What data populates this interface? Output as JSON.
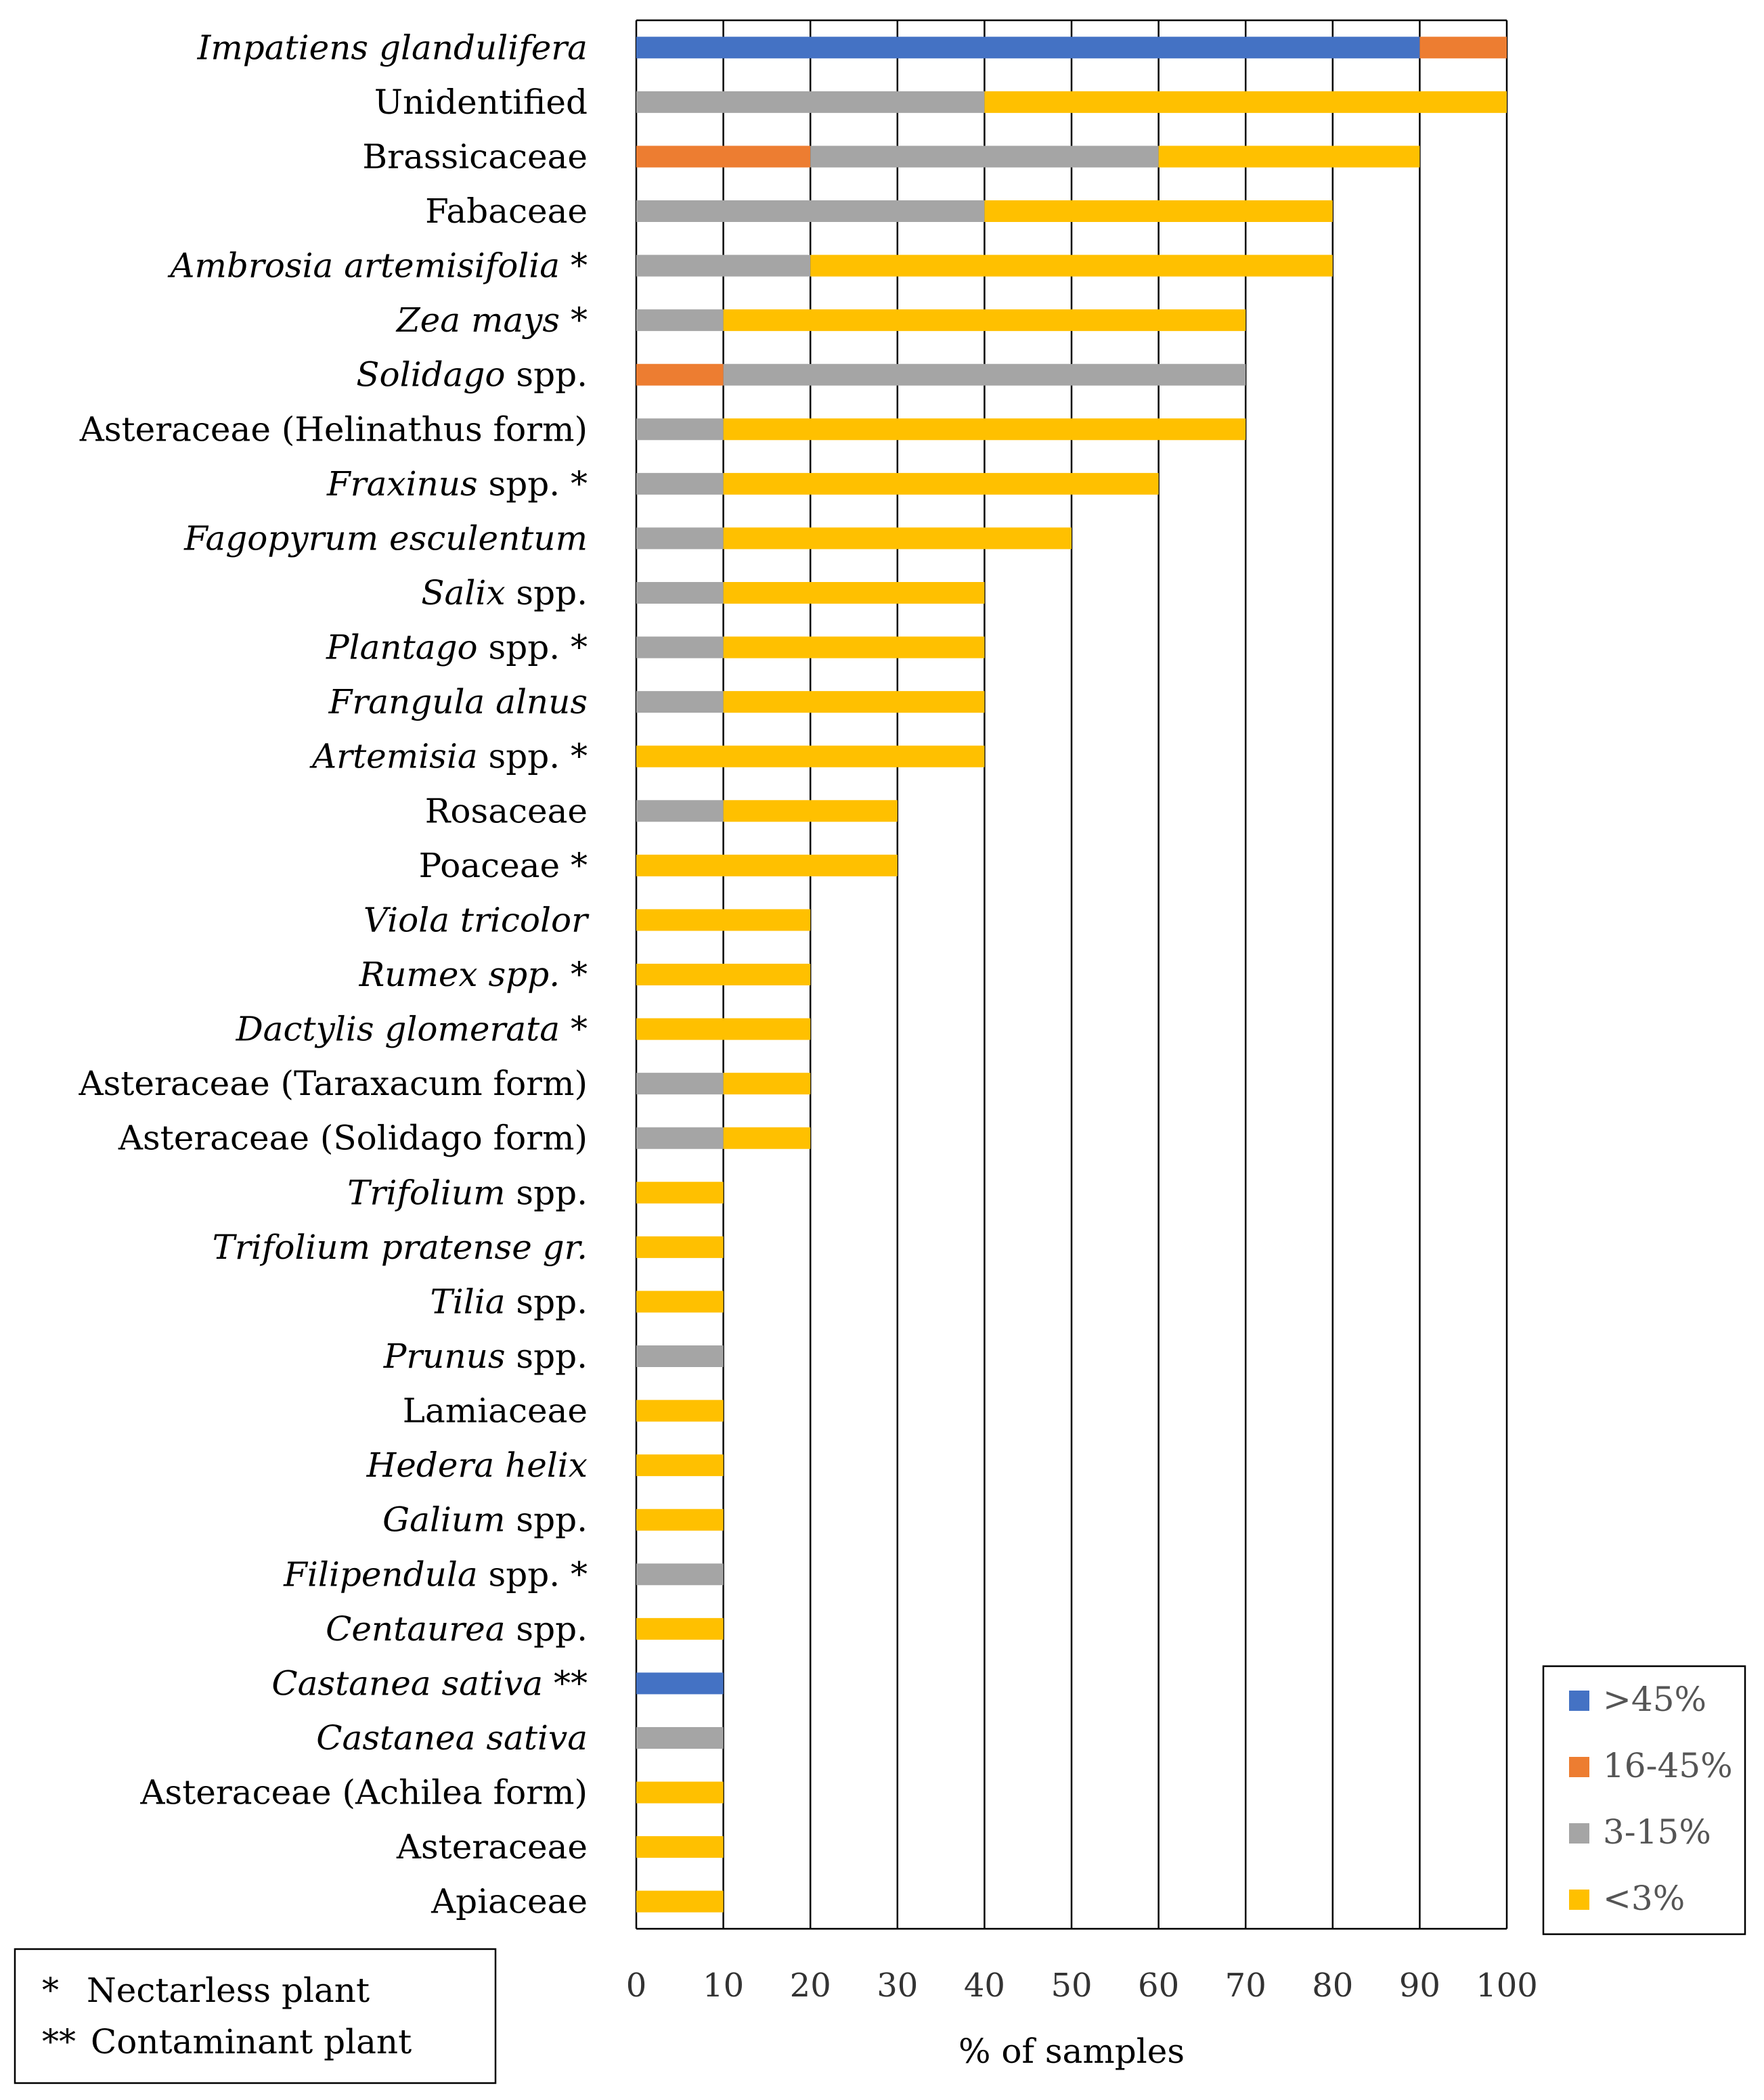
{
  "chart_data": {
    "type": "bar",
    "orientation": "horizontal",
    "stacked": true,
    "xlabel": "% of samples",
    "ylabel": "",
    "xlim": [
      0,
      100
    ],
    "xticks": [
      "0",
      "10",
      "20",
      "30",
      "40",
      "50",
      "60",
      "70",
      "80",
      "90",
      "100"
    ],
    "grid": "vertical",
    "legend_position": "bottom-right",
    "series_names": [
      ">45%",
      "16-45%",
      "3-15%",
      "<3%"
    ],
    "series_colors": [
      "#4472C4",
      "#ED7D31",
      "#A5A5A5",
      "#FFC000"
    ],
    "categories": [
      {
        "parts": [
          {
            "t": "Impatiens glandulifera",
            "i": true
          }
        ],
        "values": [
          90,
          10,
          0,
          0
        ]
      },
      {
        "parts": [
          {
            "t": "Unidentified",
            "i": false
          }
        ],
        "values": [
          0,
          0,
          40,
          60
        ]
      },
      {
        "parts": [
          {
            "t": "Brassicaceae",
            "i": false
          }
        ],
        "values": [
          0,
          20,
          40,
          30
        ]
      },
      {
        "parts": [
          {
            "t": "Fabaceae",
            "i": false
          }
        ],
        "values": [
          0,
          0,
          40,
          40
        ]
      },
      {
        "parts": [
          {
            "t": "Ambrosia artemisifolia",
            "i": true
          },
          {
            "t": " *",
            "i": false
          }
        ],
        "values": [
          0,
          0,
          20,
          60
        ]
      },
      {
        "parts": [
          {
            "t": "Zea mays",
            "i": true
          },
          {
            "t": " *",
            "i": false
          }
        ],
        "values": [
          0,
          0,
          10,
          60
        ]
      },
      {
        "parts": [
          {
            "t": "Solidago",
            "i": true
          },
          {
            "t": " spp.",
            "i": false
          }
        ],
        "values": [
          0,
          10,
          60,
          0
        ]
      },
      {
        "parts": [
          {
            "t": "Asteraceae (Helinathus form)",
            "i": false
          }
        ],
        "values": [
          0,
          0,
          10,
          60
        ]
      },
      {
        "parts": [
          {
            "t": "Fraxinus",
            "i": true
          },
          {
            "t": " spp. *",
            "i": false
          }
        ],
        "values": [
          0,
          0,
          10,
          50
        ]
      },
      {
        "parts": [
          {
            "t": "Fagopyrum esculentum",
            "i": true
          }
        ],
        "values": [
          0,
          0,
          10,
          40
        ]
      },
      {
        "parts": [
          {
            "t": "Salix",
            "i": true
          },
          {
            "t": " spp.",
            "i": false
          }
        ],
        "values": [
          0,
          0,
          10,
          30
        ]
      },
      {
        "parts": [
          {
            "t": "Plantago",
            "i": true
          },
          {
            "t": " spp. *",
            "i": false
          }
        ],
        "values": [
          0,
          0,
          10,
          30
        ]
      },
      {
        "parts": [
          {
            "t": "Frangula alnus",
            "i": true
          }
        ],
        "values": [
          0,
          0,
          10,
          30
        ]
      },
      {
        "parts": [
          {
            "t": "Artemisia",
            "i": true
          },
          {
            "t": " spp. *",
            "i": false
          }
        ],
        "values": [
          0,
          0,
          0,
          40
        ]
      },
      {
        "parts": [
          {
            "t": "Rosaceae",
            "i": false
          }
        ],
        "values": [
          0,
          0,
          10,
          20
        ]
      },
      {
        "parts": [
          {
            "t": "Poaceae *",
            "i": false
          }
        ],
        "values": [
          0,
          0,
          0,
          30
        ]
      },
      {
        "parts": [
          {
            "t": "Viola tricolor",
            "i": true
          }
        ],
        "values": [
          0,
          0,
          0,
          20
        ]
      },
      {
        "parts": [
          {
            "t": "Rumex spp.",
            "i": true
          },
          {
            "t": " *",
            "i": false
          }
        ],
        "values": [
          0,
          0,
          0,
          20
        ]
      },
      {
        "parts": [
          {
            "t": "Dactylis glomerata",
            "i": true
          },
          {
            "t": " *",
            "i": false
          }
        ],
        "values": [
          0,
          0,
          0,
          20
        ]
      },
      {
        "parts": [
          {
            "t": "Asteraceae (Taraxacum form)",
            "i": false
          }
        ],
        "values": [
          0,
          0,
          10,
          10
        ]
      },
      {
        "parts": [
          {
            "t": "Asteraceae (Solidago form)",
            "i": false
          }
        ],
        "values": [
          0,
          0,
          10,
          10
        ]
      },
      {
        "parts": [
          {
            "t": "Trifolium",
            "i": true
          },
          {
            "t": " spp.",
            "i": false
          }
        ],
        "values": [
          0,
          0,
          0,
          10
        ]
      },
      {
        "parts": [
          {
            "t": "Trifolium pratense gr.",
            "i": true
          }
        ],
        "values": [
          0,
          0,
          0,
          10
        ]
      },
      {
        "parts": [
          {
            "t": "Tilia",
            "i": true
          },
          {
            "t": " spp.",
            "i": false
          }
        ],
        "values": [
          0,
          0,
          0,
          10
        ]
      },
      {
        "parts": [
          {
            "t": "Prunus",
            "i": true
          },
          {
            "t": " spp.",
            "i": false
          }
        ],
        "values": [
          0,
          0,
          10,
          0
        ]
      },
      {
        "parts": [
          {
            "t": "Lamiaceae",
            "i": false
          }
        ],
        "values": [
          0,
          0,
          0,
          10
        ]
      },
      {
        "parts": [
          {
            "t": "Hedera helix",
            "i": true
          }
        ],
        "values": [
          0,
          0,
          0,
          10
        ]
      },
      {
        "parts": [
          {
            "t": "Galium",
            "i": true
          },
          {
            "t": " spp.",
            "i": false
          }
        ],
        "values": [
          0,
          0,
          0,
          10
        ]
      },
      {
        "parts": [
          {
            "t": "Filipendula",
            "i": true
          },
          {
            "t": " spp. *",
            "i": false
          }
        ],
        "values": [
          0,
          0,
          10,
          0
        ]
      },
      {
        "parts": [
          {
            "t": "Centaurea",
            "i": true
          },
          {
            "t": " spp.",
            "i": false
          }
        ],
        "values": [
          0,
          0,
          0,
          10
        ]
      },
      {
        "parts": [
          {
            "t": "Castanea sativa",
            "i": true
          },
          {
            "t": " **",
            "i": false
          }
        ],
        "values": [
          10,
          0,
          0,
          0
        ]
      },
      {
        "parts": [
          {
            "t": "Castanea sativa",
            "i": true
          }
        ],
        "values": [
          0,
          0,
          10,
          0
        ]
      },
      {
        "parts": [
          {
            "t": "Asteraceae (Achilea form)",
            "i": false
          }
        ],
        "values": [
          0,
          0,
          0,
          10
        ]
      },
      {
        "parts": [
          {
            "t": "Asteraceae",
            "i": false
          }
        ],
        "values": [
          0,
          0,
          0,
          10
        ]
      },
      {
        "parts": [
          {
            "t": "Apiaceae",
            "i": false
          }
        ],
        "values": [
          0,
          0,
          0,
          10
        ]
      }
    ],
    "notes": [
      {
        "symbol": "*",
        "text": "Nectarless plant"
      },
      {
        "symbol": "**",
        "text": "Contaminant plant"
      }
    ]
  }
}
